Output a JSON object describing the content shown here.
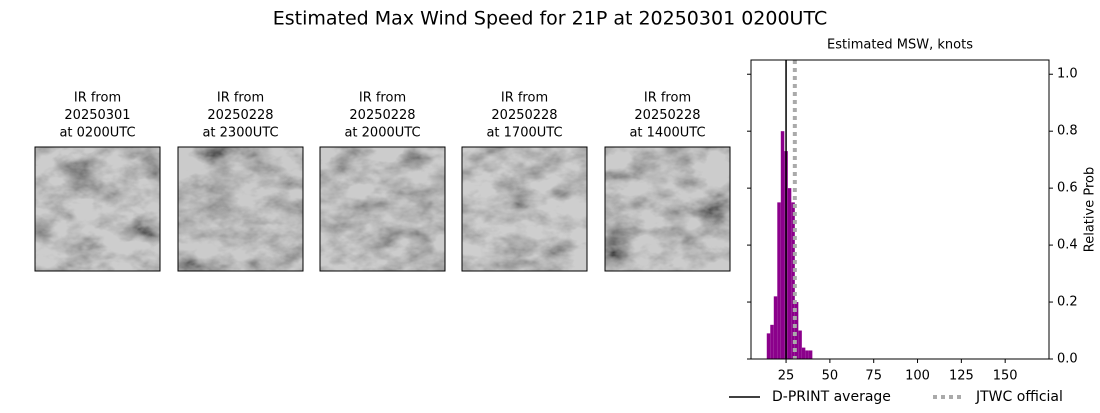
{
  "title": "Estimated Max Wind Speed for 21P at 20250301 0200UTC",
  "panels": [
    {
      "lines": [
        "IR from",
        "20250301",
        "at 0200UTC"
      ]
    },
    {
      "lines": [
        "IR from",
        "20250228",
        "at 2300UTC"
      ]
    },
    {
      "lines": [
        "IR from",
        "20250228",
        "at 2000UTC"
      ]
    },
    {
      "lines": [
        "IR from",
        "20250228",
        "at 1700UTC"
      ]
    },
    {
      "lines": [
        "IR from",
        "20250228",
        "at 1400UTC"
      ]
    }
  ],
  "chart_data": {
    "type": "histogram",
    "title": "Estimated MSW, knots",
    "y_label": "Relative Prob",
    "bins": [
      14,
      16,
      18,
      20,
      22,
      24,
      26,
      28,
      30,
      32,
      34,
      36,
      38,
      40
    ],
    "values": [
      0.09,
      0.12,
      0.22,
      0.55,
      0.8,
      0.73,
      0.6,
      0.55,
      0.2,
      0.1,
      0.04,
      0.03,
      0.03
    ],
    "color": "#8b008b",
    "xlim": [
      5,
      175
    ],
    "xticks": [
      25,
      50,
      75,
      100,
      125,
      150
    ],
    "ylim": [
      0,
      1.05
    ],
    "yticks": [
      {
        "value": 0,
        "label": "0.0"
      },
      0.2,
      0.4,
      0.6,
      0.8,
      {
        "value": 1,
        "label": "1.0"
      }
    ],
    "lines": [
      {
        "name": "D-PRINT average",
        "value": 25,
        "color": "#000000",
        "style": "solid"
      },
      {
        "name": "JTWC official",
        "value": 30,
        "color": "#aaaaaa",
        "style": "dotted"
      }
    ],
    "legend": "bottom"
  }
}
